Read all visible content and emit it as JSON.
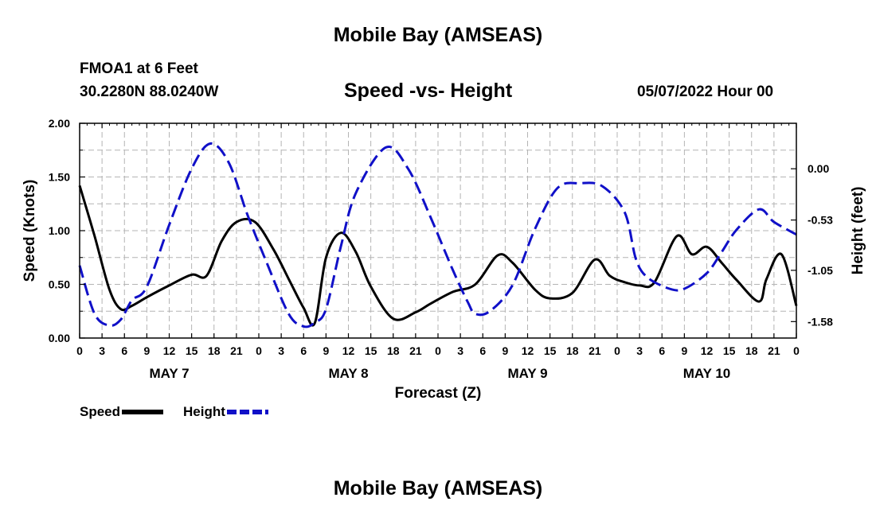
{
  "page": {
    "title": "Mobile Bay (AMSEAS)",
    "footer_title": "Mobile Bay (AMSEAS)",
    "station": "FMOA1 at 6 Feet",
    "coords": "30.2280N  88.0240W",
    "subtitle": "Speed -vs- Height",
    "run_time": "05/07/2022 Hour 00"
  },
  "colors": {
    "speed": "#000000",
    "height": "#1010c8",
    "grid": "#b4b4b4"
  },
  "chart_data": {
    "type": "line",
    "title": "Speed -vs- Height",
    "xlabel": "Forecast (Z)",
    "ylabel": "Speed (Knots)",
    "y2label": "Height (feet)",
    "xlim": [
      0,
      96
    ],
    "ylim": [
      0,
      2.0
    ],
    "y2lim": [
      -1.75,
      0.47
    ],
    "x_tick_step_hours": 3,
    "x_tick_labels": [
      "0",
      "3",
      "6",
      "9",
      "12",
      "15",
      "18",
      "21",
      "0",
      "3",
      "6",
      "9",
      "12",
      "15",
      "18",
      "21",
      "0",
      "3",
      "6",
      "9",
      "12",
      "15",
      "18",
      "21",
      "0",
      "3",
      "6",
      "9",
      "12",
      "15",
      "18",
      "21",
      "0"
    ],
    "y_ticks": [
      0,
      0.5,
      1.0,
      1.5,
      2.0
    ],
    "y_tick_labels": [
      "0.00",
      "0.50",
      "1.00",
      "1.50",
      "2.00"
    ],
    "y2_ticks": [
      -1.58,
      -1.05,
      -0.53,
      0.0
    ],
    "y2_tick_labels": [
      "-1.58",
      "-1.05",
      "-0.53",
      "0.00"
    ],
    "day_labels": [
      {
        "label": "MAY 7",
        "hour": 12
      },
      {
        "label": "MAY 8",
        "hour": 36
      },
      {
        "label": "MAY 9",
        "hour": 60
      },
      {
        "label": "MAY 10",
        "hour": 84
      }
    ],
    "series": [
      {
        "name": "Speed",
        "axis": "left",
        "style": "solid",
        "x": [
          0,
          2,
          4,
          5.5,
          7,
          9,
          12,
          15,
          17,
          19,
          21,
          23.5,
          26,
          28,
          30,
          31.5,
          33,
          35,
          37,
          39,
          42,
          45,
          47,
          50,
          53,
          56,
          58,
          61,
          63,
          66,
          69,
          71,
          73,
          75,
          77,
          80,
          82,
          84,
          86,
          88,
          91,
          92,
          94,
          96
        ],
        "values": [
          1.42,
          0.95,
          0.45,
          0.27,
          0.3,
          0.38,
          0.49,
          0.59,
          0.58,
          0.9,
          1.08,
          1.08,
          0.82,
          0.55,
          0.28,
          0.14,
          0.75,
          0.98,
          0.8,
          0.48,
          0.18,
          0.24,
          0.32,
          0.43,
          0.5,
          0.77,
          0.7,
          0.45,
          0.37,
          0.42,
          0.73,
          0.58,
          0.52,
          0.49,
          0.52,
          0.95,
          0.78,
          0.85,
          0.7,
          0.54,
          0.34,
          0.55,
          0.78,
          0.3
        ]
      },
      {
        "name": "Height",
        "axis": "right",
        "style": "dashed",
        "x": [
          0,
          2,
          4,
          5.5,
          7,
          9,
          12,
          15,
          17.5,
          20,
          22.5,
          25,
          28,
          30,
          31.5,
          33,
          35,
          37,
          41,
          44,
          47,
          50,
          52,
          53,
          55,
          58,
          61,
          64,
          67,
          70,
          73,
          74.5,
          76,
          79,
          81,
          84,
          86,
          88,
          91,
          93,
          96
        ],
        "values": [
          -1.0,
          -1.5,
          -1.62,
          -1.56,
          -1.36,
          -1.22,
          -0.58,
          0.0,
          0.26,
          0.06,
          -0.48,
          -0.96,
          -1.5,
          -1.63,
          -1.59,
          -1.45,
          -0.8,
          -0.25,
          0.22,
          0.0,
          -0.5,
          -1.05,
          -1.38,
          -1.5,
          -1.47,
          -1.2,
          -0.62,
          -0.2,
          -0.15,
          -0.18,
          -0.45,
          -0.93,
          -1.12,
          -1.24,
          -1.24,
          -1.08,
          -0.86,
          -0.63,
          -0.42,
          -0.55,
          -0.68
        ]
      }
    ]
  },
  "legend": {
    "speed_label": "Speed",
    "height_label": "Height"
  }
}
